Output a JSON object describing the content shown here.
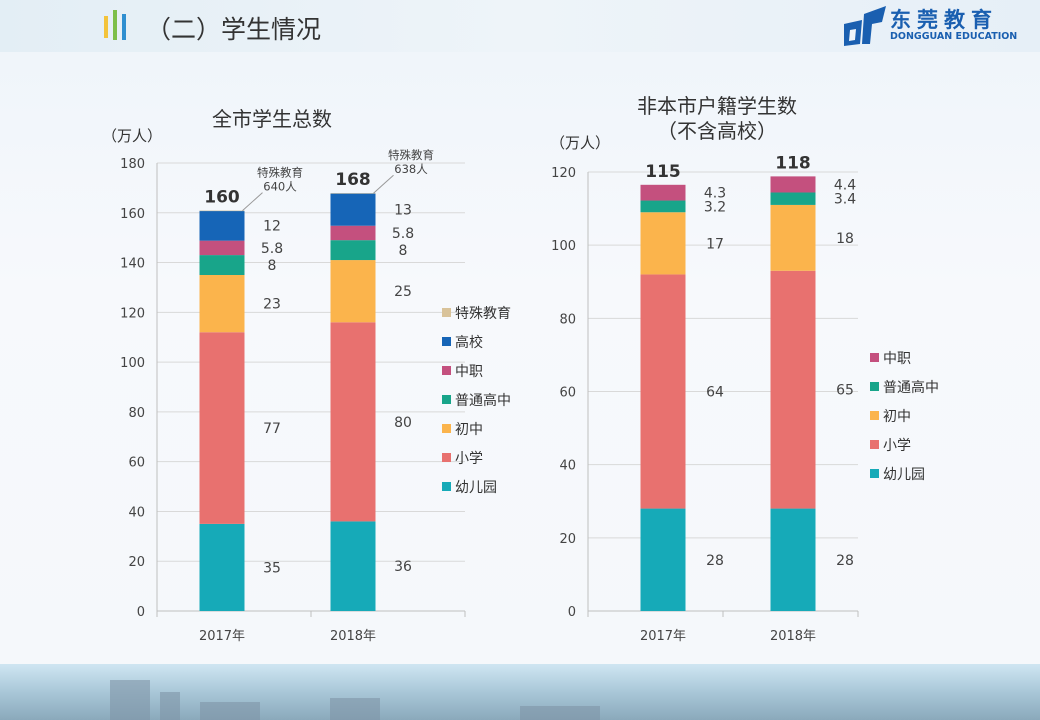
{
  "header": {
    "title": "（二）学生情况",
    "accent_bars": [
      "#f3c33b",
      "#7dbf4a",
      "#2f8fd0"
    ]
  },
  "logo": {
    "cn": "东莞教育",
    "en": "DONGGUAN EDUCATION",
    "color": "#1a5fb0"
  },
  "colors": {
    "幼儿园": "#16aab8",
    "小学": "#e8716f",
    "初中": "#fbb44c",
    "普通高中": "#18a58a",
    "中职": "#c4507e",
    "高校": "#1665b7",
    "特殊教育": "#d9c39a"
  },
  "chart_data": [
    {
      "type": "bar",
      "stacked": true,
      "title": "全市学生总数",
      "ylabel": "（万人）",
      "ylim": [
        0,
        180
      ],
      "yticks": [
        0,
        20,
        40,
        60,
        80,
        100,
        120,
        140,
        160,
        180
      ],
      "grid": true,
      "legend": "right",
      "categories": [
        "2017年",
        "2018年"
      ],
      "totals": [
        "160",
        "168"
      ],
      "series": [
        {
          "name": "幼儿园",
          "values": [
            35,
            36
          ],
          "labels": [
            "35",
            "36"
          ]
        },
        {
          "name": "小学",
          "values": [
            77,
            80
          ],
          "labels": [
            "77",
            "80"
          ]
        },
        {
          "name": "初中",
          "values": [
            23,
            25
          ],
          "labels": [
            "23",
            "25"
          ]
        },
        {
          "name": "普通高中",
          "values": [
            8,
            8
          ],
          "labels": [
            "8",
            "8"
          ]
        },
        {
          "name": "中职",
          "values": [
            5.8,
            5.8
          ],
          "labels": [
            "5.8",
            "5.8"
          ]
        },
        {
          "name": "高校",
          "values": [
            12,
            13
          ],
          "labels": [
            "12",
            "13"
          ]
        },
        {
          "name": "特殊教育",
          "values": [
            0.064,
            0.0638
          ],
          "labels": [
            "",
            ""
          ]
        }
      ],
      "annotations": [
        {
          "category": "2017年",
          "lines": [
            "特殊教育",
            "640人"
          ]
        },
        {
          "category": "2018年",
          "lines": [
            "特殊教育",
            "638人"
          ]
        }
      ]
    },
    {
      "type": "bar",
      "stacked": true,
      "title": [
        "非本市户籍学生数",
        "（不含高校）"
      ],
      "ylabel": "（万人）",
      "ylim": [
        0,
        120
      ],
      "yticks": [
        0,
        20,
        40,
        60,
        80,
        100,
        120
      ],
      "grid": true,
      "legend": "right",
      "categories": [
        "2017年",
        "2018年"
      ],
      "totals": [
        "115",
        "118"
      ],
      "series": [
        {
          "name": "幼儿园",
          "values": [
            28,
            28
          ],
          "labels": [
            "28",
            "28"
          ]
        },
        {
          "name": "小学",
          "values": [
            64,
            65
          ],
          "labels": [
            "64",
            "65"
          ]
        },
        {
          "name": "初中",
          "values": [
            17,
            18
          ],
          "labels": [
            "17",
            "18"
          ]
        },
        {
          "name": "普通高中",
          "values": [
            3.2,
            3.4
          ],
          "labels": [
            "3.2",
            "3.4"
          ]
        },
        {
          "name": "中职",
          "values": [
            4.3,
            4.4
          ],
          "labels": [
            "4.3",
            "4.4"
          ]
        }
      ]
    }
  ]
}
